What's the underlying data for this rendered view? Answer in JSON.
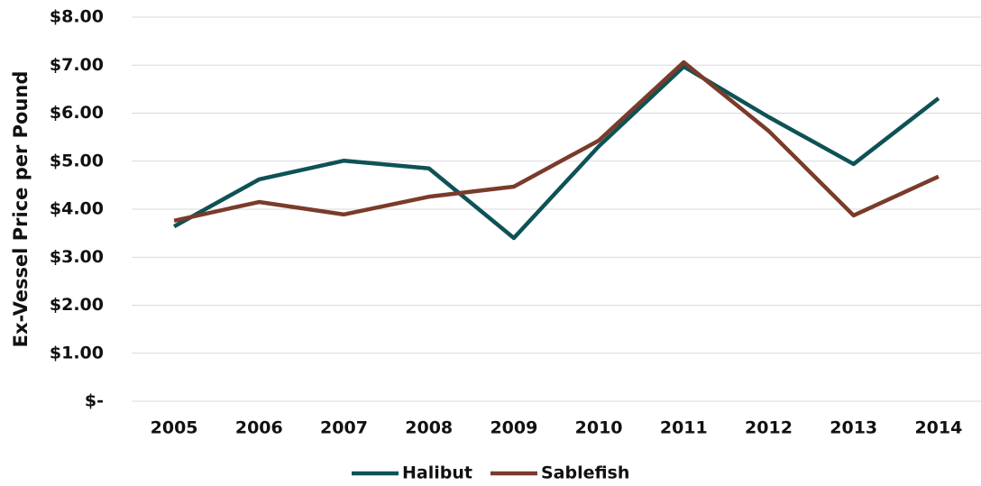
{
  "chart_data": {
    "type": "line",
    "y_label": "Ex-Vessel Price per Pound",
    "categories": [
      "2005",
      "2006",
      "2007",
      "2008",
      "2009",
      "2010",
      "2011",
      "2012",
      "2013",
      "2014"
    ],
    "series": [
      {
        "name": "Halibut",
        "color": "#0e5256",
        "values": [
          3.64,
          4.62,
          5.01,
          4.85,
          3.4,
          5.31,
          6.97,
          5.92,
          4.94,
          6.31
        ]
      },
      {
        "name": "Sablefish",
        "color": "#7a3b2b",
        "values": [
          3.76,
          4.15,
          3.89,
          4.26,
          4.47,
          5.43,
          7.06,
          5.63,
          3.87,
          4.68
        ]
      }
    ],
    "ylim": [
      0,
      8
    ],
    "yticks": [
      {
        "value": 0,
        "label": "$-"
      },
      {
        "value": 1,
        "label": "$1.00"
      },
      {
        "value": 2,
        "label": "$2.00"
      },
      {
        "value": 3,
        "label": "$3.00"
      },
      {
        "value": 4,
        "label": "$4.00"
      },
      {
        "value": 5,
        "label": "$5.00"
      },
      {
        "value": 6,
        "label": "$6.00"
      },
      {
        "value": 7,
        "label": "$7.00"
      },
      {
        "value": 8,
        "label": "$8.00"
      }
    ],
    "grid": true,
    "legend": "bottom"
  }
}
